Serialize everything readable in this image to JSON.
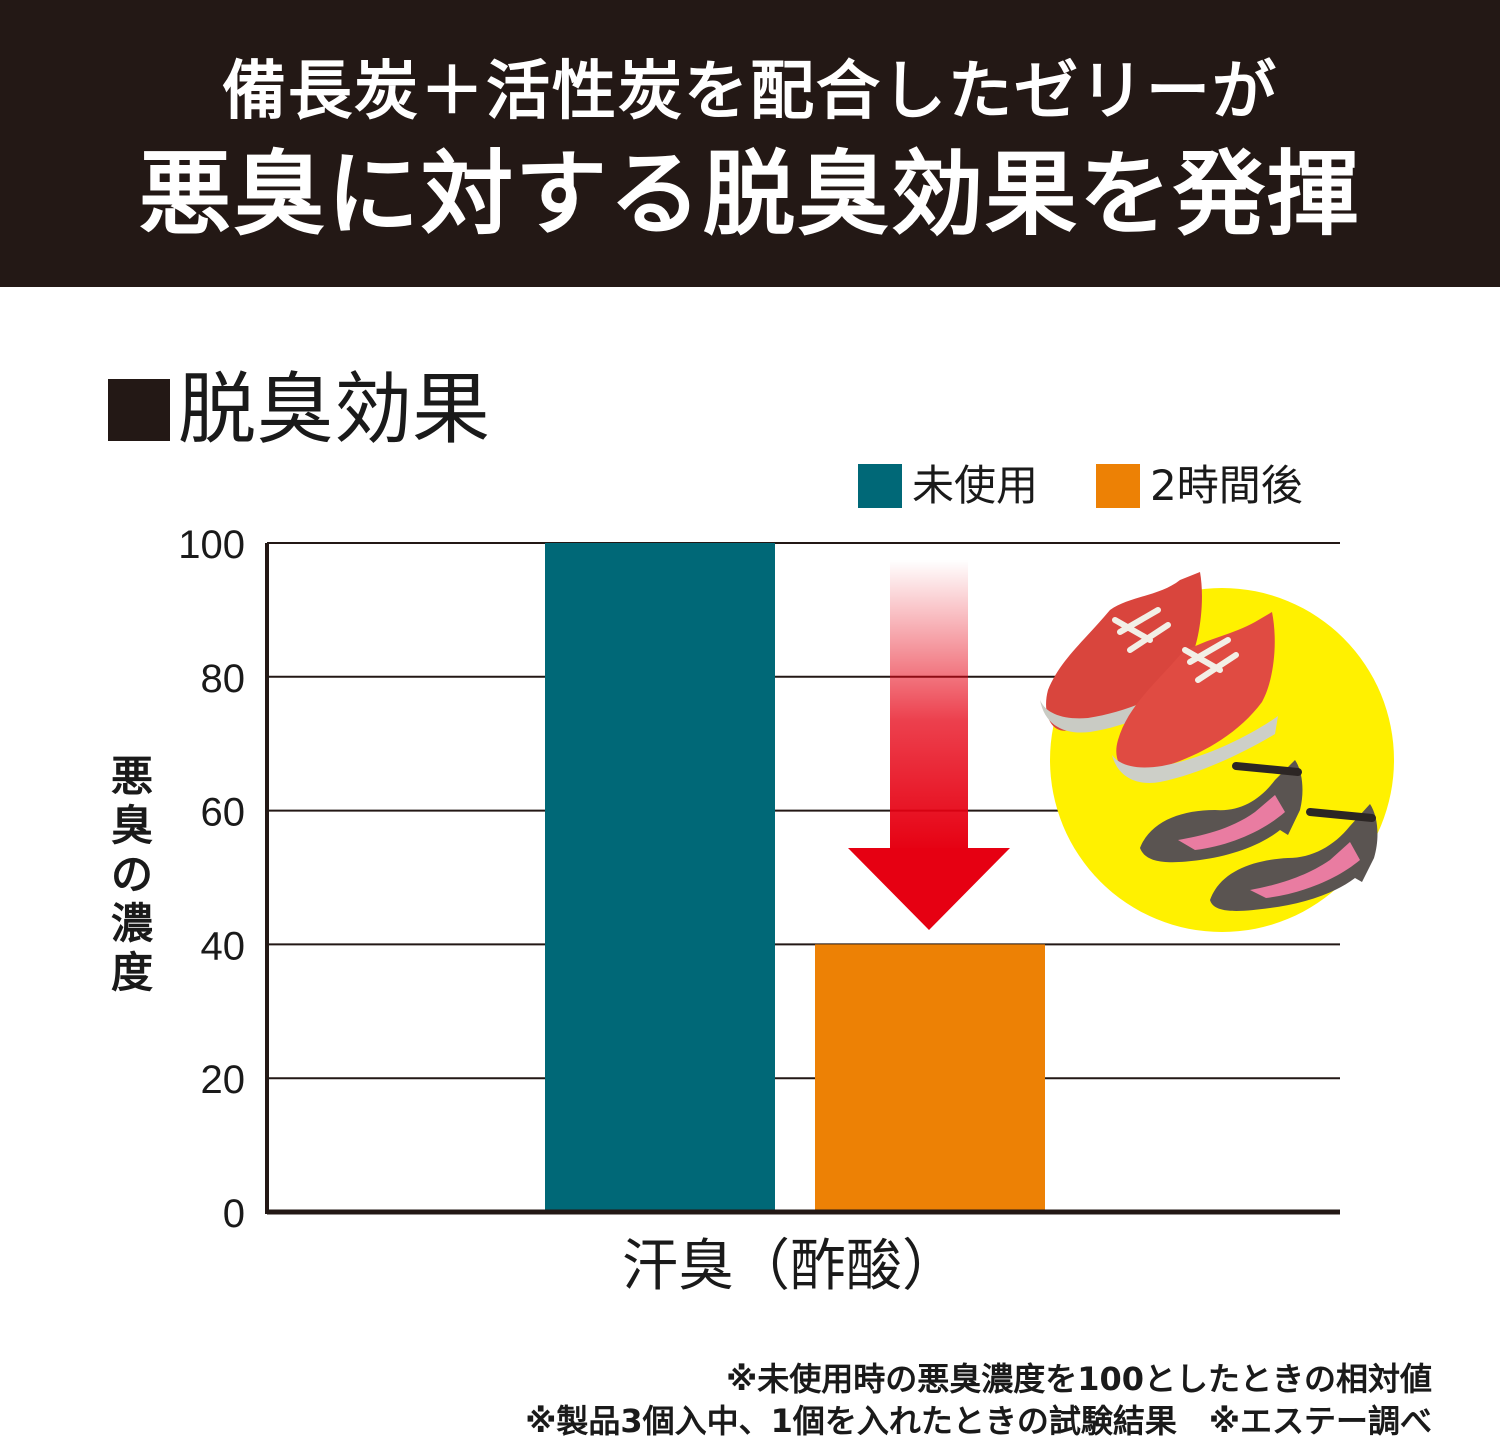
{
  "header": {
    "line1": "備長炭＋活性炭を配合したゼリーが",
    "line2": "悪臭に対する脱臭効果を発揮"
  },
  "section_title": "脱臭効果",
  "colors": {
    "header_bg": "#231815",
    "series_unused": "#006877",
    "series_after": "#ED8105",
    "arrow_red": "#E60012",
    "spot_yellow": "#FFF100"
  },
  "icons": [
    "square-bullet-icon",
    "sneakers-illustration",
    "high-heels-illustration",
    "down-arrow-icon"
  ],
  "chart_data": {
    "type": "bar",
    "title": "脱臭効果",
    "categories": [
      "汗臭（酢酸）"
    ],
    "series": [
      {
        "name": "未使用",
        "values": [
          100
        ]
      },
      {
        "name": "2時間後",
        "values": [
          40
        ]
      }
    ],
    "xlabel": "汗臭（酢酸）",
    "ylabel": "悪臭の濃度",
    "ylim": [
      0,
      100
    ],
    "yticks": [
      "0",
      "20",
      "40",
      "60",
      "80",
      "100"
    ],
    "grid": true,
    "legend_position": "top-right"
  },
  "footnotes": [
    "※未使用時の悪臭濃度を100としたときの相対値",
    "※製品3個入中、1個を入れたときの試験結果　※エステー調べ"
  ]
}
